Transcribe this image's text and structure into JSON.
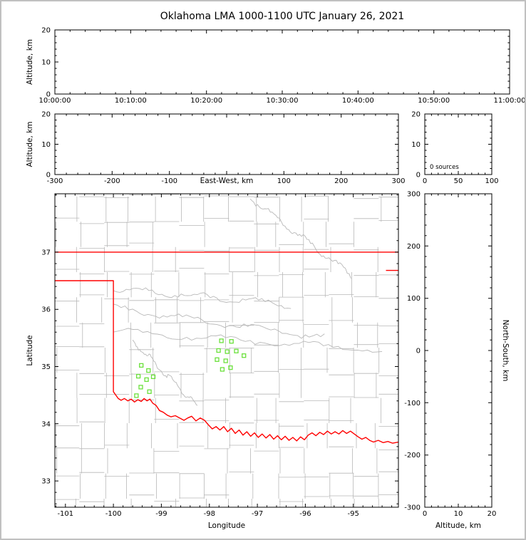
{
  "title": "Oklahoma LMA 1000-1100 UTC January 26, 2021",
  "colors": {
    "axis": "#000000",
    "county_line": "#b8b8b8",
    "river_line": "#b8b8b8",
    "state_border": "#ff0000",
    "station_marker": "#6be03c",
    "background": "#ffffff",
    "figure_border": "#c0c0c0"
  },
  "chart_data": [
    {
      "id": "time_altitude",
      "type": "scatter",
      "xlabel": "",
      "ylabel": "Altitude, km",
      "xlim": [
        0,
        60
      ],
      "xticks": [
        0,
        10,
        20,
        30,
        40,
        50,
        60
      ],
      "xtick_labels": [
        "10:00:00",
        "10:10:00",
        "10:20:00",
        "10:30:00",
        "10:40:00",
        "10:50:00",
        "11:00:00"
      ],
      "x_minor": 2,
      "ylim": [
        0,
        20
      ],
      "yticks": [
        0,
        10,
        20
      ],
      "y_minor": 2,
      "points": []
    },
    {
      "id": "eastwest_altitude",
      "type": "scatter",
      "xlabel": "East-West, km",
      "ylabel": "Altitude, km",
      "xlim": [
        -300,
        300
      ],
      "xticks": [
        -300,
        -200,
        -100,
        0,
        100,
        200,
        300
      ],
      "xtick_labels": [
        "-300",
        "-200",
        "-100",
        "",
        "100",
        "200",
        "300"
      ],
      "x_minor": 20,
      "ylim": [
        0,
        20
      ],
      "yticks": [
        0,
        10,
        20
      ],
      "y_minor": 2,
      "points": []
    },
    {
      "id": "source_histogram",
      "type": "scatter",
      "annotation": "0 sources",
      "xlim": [
        0,
        100
      ],
      "xticks": [
        0,
        50,
        100
      ],
      "x_minor": 10,
      "ylim": [
        0,
        20
      ],
      "yticks": [
        0,
        10,
        20
      ],
      "y_minor": 2,
      "points": []
    },
    {
      "id": "plan_view_map",
      "type": "scatter",
      "xlabel": "Longitude",
      "ylabel": "Latitude",
      "xlim": [
        -101.22,
        -94.06
      ],
      "xticks": [
        -101,
        -100,
        -99,
        -98,
        -97,
        -96,
        -95
      ],
      "x_minor": 0.2,
      "ylim": [
        32.54,
        38.02
      ],
      "yticks": [
        33,
        34,
        35,
        36,
        37
      ],
      "y_minor": 0.2,
      "points": []
    },
    {
      "id": "altitude_northsouth",
      "type": "scatter",
      "xlabel": "Altitude, km",
      "ylabel": "North-South, km",
      "xlim": [
        0,
        20
      ],
      "xticks": [
        0,
        10,
        20
      ],
      "x_minor": 2,
      "ylim": [
        -300,
        300
      ],
      "yticks": [
        -300,
        -200,
        -100,
        0,
        100,
        200,
        300
      ],
      "y_minor": 20,
      "points": []
    }
  ],
  "map": {
    "state_boundary": [
      {
        "name": "kansas-oklahoma-border",
        "points": [
          [
            -101.22,
            37.0
          ],
          [
            -94.06,
            37.0
          ]
        ]
      },
      {
        "name": "missouri-border-segment",
        "points": [
          [
            -94.32,
            36.68
          ],
          [
            -94.06,
            36.68
          ]
        ]
      },
      {
        "name": "oklahoma-state-border",
        "points": [
          [
            -101.22,
            36.5
          ],
          [
            -100.0,
            36.5
          ],
          [
            -100.0,
            34.56
          ],
          [
            -99.95,
            34.5
          ],
          [
            -99.9,
            34.44
          ],
          [
            -99.84,
            34.41
          ],
          [
            -99.77,
            34.44
          ],
          [
            -99.7,
            34.4
          ],
          [
            -99.63,
            34.43
          ],
          [
            -99.56,
            34.38
          ],
          [
            -99.49,
            34.42
          ],
          [
            -99.42,
            34.39
          ],
          [
            -99.36,
            34.44
          ],
          [
            -99.3,
            34.4
          ],
          [
            -99.24,
            34.43
          ],
          [
            -99.18,
            34.36
          ],
          [
            -99.11,
            34.32
          ],
          [
            -99.04,
            34.23
          ],
          [
            -98.96,
            34.2
          ],
          [
            -98.88,
            34.15
          ],
          [
            -98.8,
            34.12
          ],
          [
            -98.71,
            34.14
          ],
          [
            -98.62,
            34.1
          ],
          [
            -98.53,
            34.06
          ],
          [
            -98.45,
            34.1
          ],
          [
            -98.37,
            34.13
          ],
          [
            -98.28,
            34.05
          ],
          [
            -98.19,
            34.1
          ],
          [
            -98.1,
            34.06
          ],
          [
            -98.02,
            33.98
          ],
          [
            -97.94,
            33.91
          ],
          [
            -97.86,
            33.95
          ],
          [
            -97.78,
            33.89
          ],
          [
            -97.7,
            33.95
          ],
          [
            -97.62,
            33.86
          ],
          [
            -97.54,
            33.92
          ],
          [
            -97.46,
            33.83
          ],
          [
            -97.38,
            33.89
          ],
          [
            -97.3,
            33.8
          ],
          [
            -97.22,
            33.86
          ],
          [
            -97.14,
            33.78
          ],
          [
            -97.06,
            33.84
          ],
          [
            -96.98,
            33.76
          ],
          [
            -96.9,
            33.82
          ],
          [
            -96.82,
            33.75
          ],
          [
            -96.74,
            33.81
          ],
          [
            -96.66,
            33.73
          ],
          [
            -96.58,
            33.79
          ],
          [
            -96.5,
            33.72
          ],
          [
            -96.42,
            33.78
          ],
          [
            -96.34,
            33.71
          ],
          [
            -96.26,
            33.76
          ],
          [
            -96.18,
            33.7
          ],
          [
            -96.1,
            33.77
          ],
          [
            -96.02,
            33.72
          ],
          [
            -95.94,
            33.8
          ],
          [
            -95.86,
            33.84
          ],
          [
            -95.78,
            33.79
          ],
          [
            -95.7,
            33.85
          ],
          [
            -95.62,
            33.81
          ],
          [
            -95.54,
            33.87
          ],
          [
            -95.46,
            33.82
          ],
          [
            -95.38,
            33.86
          ],
          [
            -95.3,
            33.82
          ],
          [
            -95.22,
            33.88
          ],
          [
            -95.14,
            33.83
          ],
          [
            -95.06,
            33.87
          ],
          [
            -94.98,
            33.82
          ],
          [
            -94.9,
            33.77
          ],
          [
            -94.82,
            33.73
          ],
          [
            -94.74,
            33.76
          ],
          [
            -94.66,
            33.71
          ],
          [
            -94.58,
            33.68
          ],
          [
            -94.48,
            33.71
          ],
          [
            -94.38,
            33.67
          ],
          [
            -94.28,
            33.69
          ],
          [
            -94.18,
            33.66
          ],
          [
            -94.06,
            33.68
          ]
        ]
      }
    ],
    "rivers": [
      {
        "from": [
          -100.0,
          35.62
        ],
        "to": [
          -94.4,
          35.28
        ]
      },
      {
        "from": [
          -100.0,
          36.36
        ],
        "to": [
          -96.3,
          36.08
        ]
      },
      {
        "from": [
          -97.15,
          37.95
        ],
        "to": [
          -95.05,
          36.6
        ]
      },
      {
        "from": [
          -99.6,
          35.45
        ],
        "to": [
          -98.25,
          34.3
        ]
      },
      {
        "from": [
          -100.0,
          36.02
        ],
        "to": [
          -95.6,
          35.5
        ]
      }
    ],
    "stations_lon_lat": [
      [
        -97.75,
        35.45
      ],
      [
        -97.54,
        35.44
      ],
      [
        -97.81,
        35.28
      ],
      [
        -97.63,
        35.26
      ],
      [
        -97.44,
        35.27
      ],
      [
        -97.84,
        35.12
      ],
      [
        -97.66,
        35.1
      ],
      [
        -97.28,
        35.19
      ],
      [
        -97.73,
        34.95
      ],
      [
        -97.56,
        34.98
      ],
      [
        -99.42,
        35.02
      ],
      [
        -99.27,
        34.93
      ],
      [
        -99.48,
        34.83
      ],
      [
        -99.31,
        34.77
      ],
      [
        -99.17,
        34.82
      ],
      [
        -99.43,
        34.64
      ],
      [
        -99.25,
        34.56
      ],
      [
        -99.52,
        34.49
      ]
    ]
  }
}
